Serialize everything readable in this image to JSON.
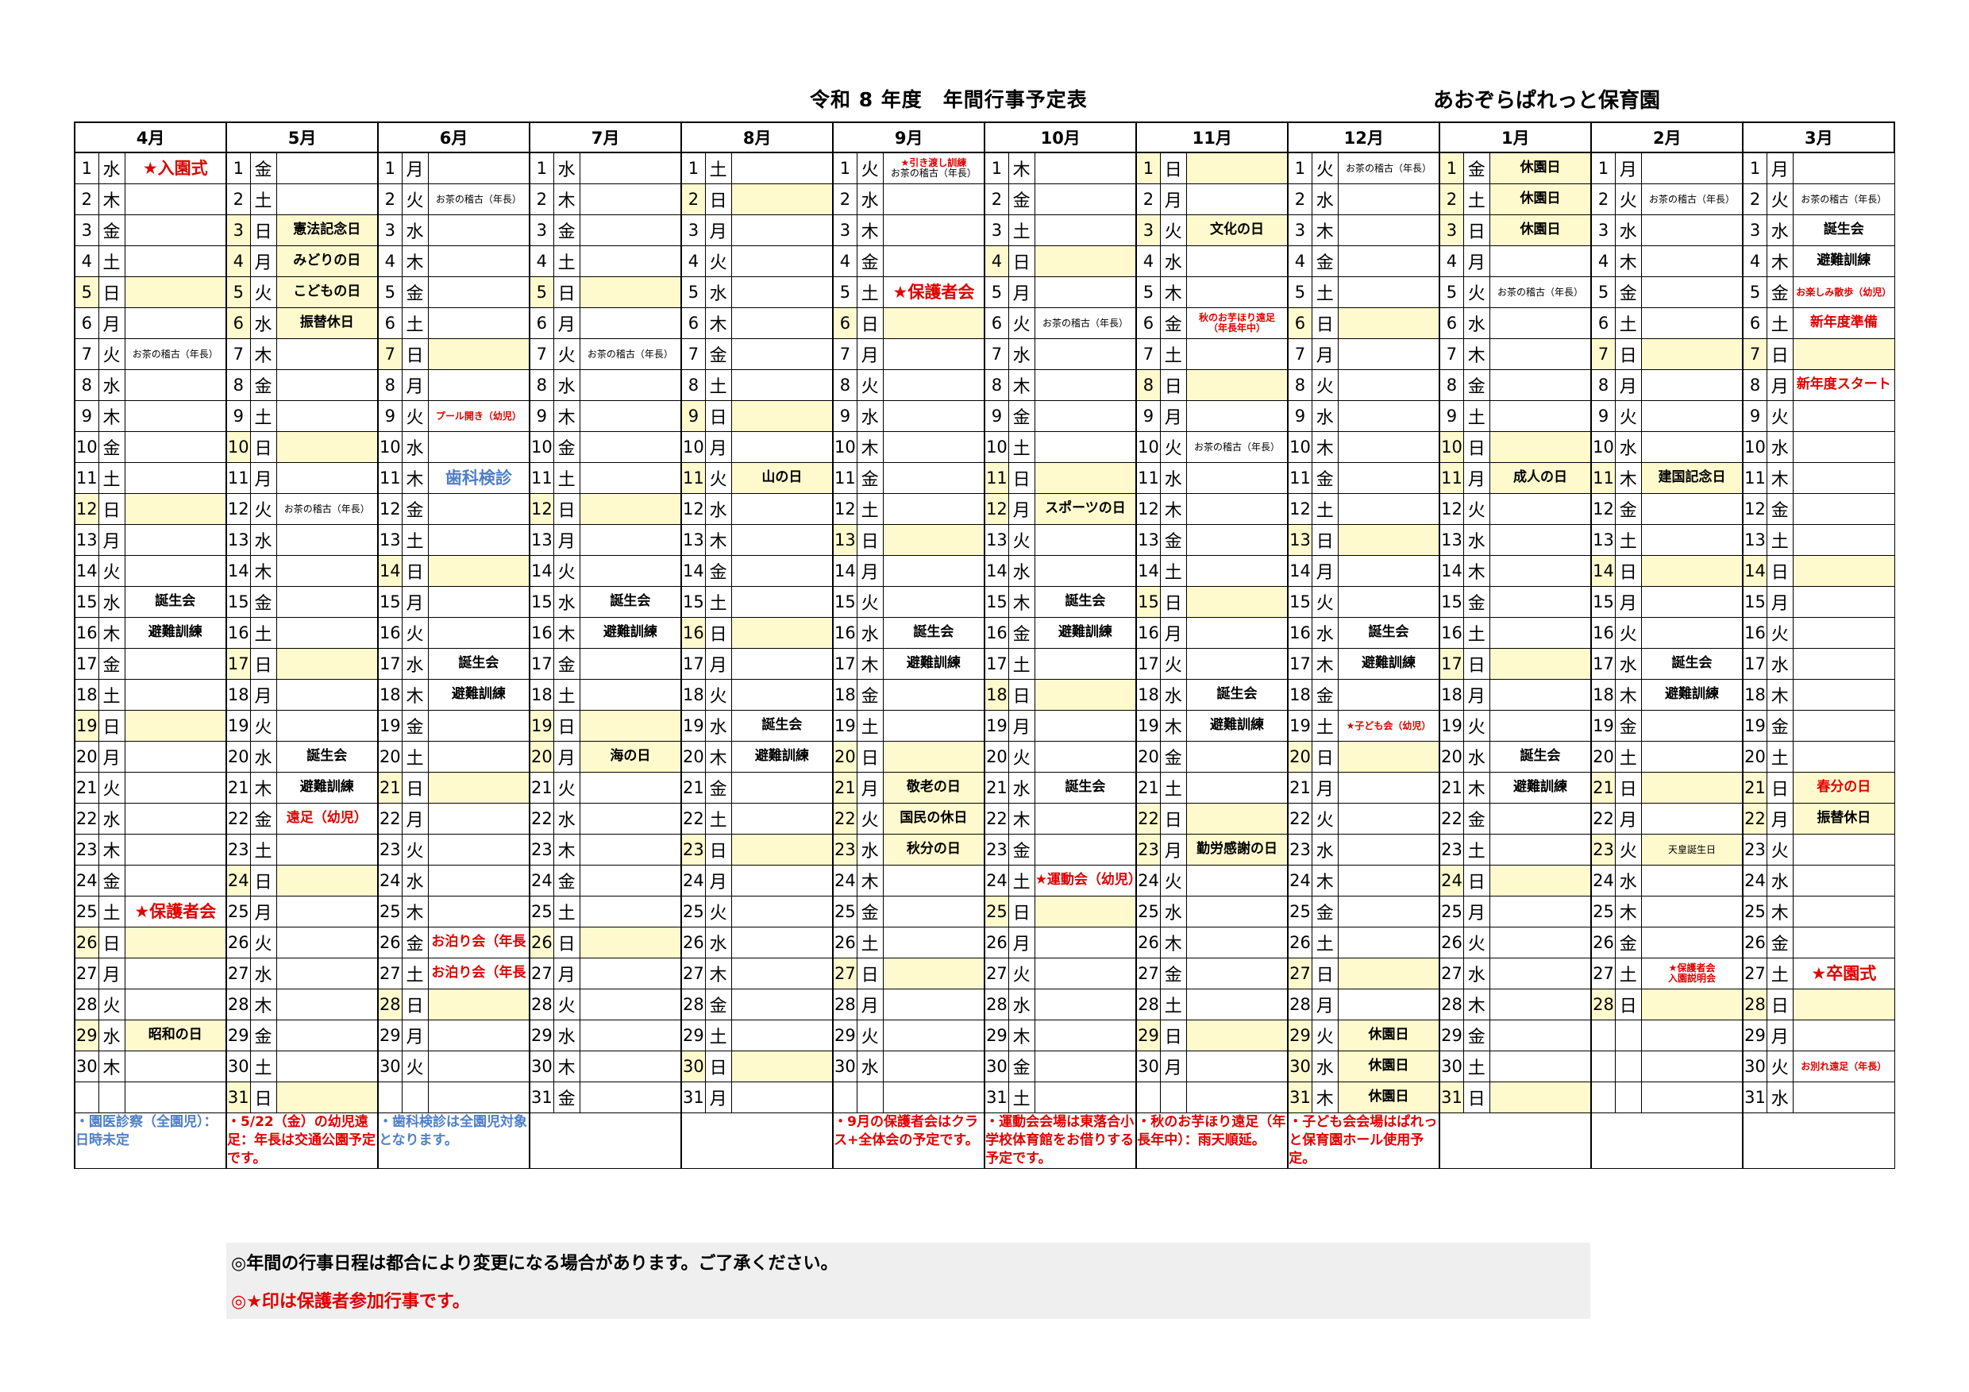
{
  "header": {
    "title": "令和 8 年度　年間行事予定表",
    "organization": "あおぞらぱれっと保育園"
  },
  "colors": {
    "red": "#e00000",
    "blue": "#4f7fc8",
    "black": "#000000",
    "holiday_fill": "#fffacd",
    "footer_fill": "#efefef"
  },
  "months": [
    {
      "label": "4月",
      "weekdays": [
        "水",
        "木",
        "金",
        "土",
        "日",
        "月",
        "火",
        "水",
        "木",
        "金",
        "土",
        "日",
        "月",
        "火",
        "水",
        "木",
        "金",
        "土",
        "日",
        "月",
        "火",
        "水",
        "木",
        "金",
        "土",
        "日",
        "月",
        "火",
        "水",
        "木"
      ],
      "highlight": [
        5,
        12,
        19,
        26,
        29
      ],
      "events": [
        {
          "day": 1,
          "text": "★入園式",
          "color": "red"
        },
        {
          "day": 7,
          "text": "お茶の稽古（年長）",
          "color": "black"
        },
        {
          "day": 15,
          "text": "誕生会",
          "color": "black"
        },
        {
          "day": 16,
          "text": "避難訓練",
          "color": "black"
        },
        {
          "day": 25,
          "text": "★保護者会",
          "color": "red"
        },
        {
          "day": 29,
          "text": "昭和の日",
          "color": "black"
        }
      ],
      "note": {
        "text": "・園医診察（全園児）：日時未定",
        "color": "blue"
      }
    },
    {
      "label": "5月",
      "weekdays": [
        "金",
        "土",
        "日",
        "月",
        "火",
        "水",
        "木",
        "金",
        "土",
        "日",
        "月",
        "火",
        "水",
        "木",
        "金",
        "土",
        "日",
        "月",
        "火",
        "水",
        "木",
        "金",
        "土",
        "日",
        "月",
        "火",
        "水",
        "木",
        "金",
        "土",
        "日"
      ],
      "highlight": [
        3,
        4,
        5,
        6,
        10,
        17,
        24,
        31
      ],
      "events": [
        {
          "day": 3,
          "text": "憲法記念日",
          "color": "black"
        },
        {
          "day": 4,
          "text": "みどりの日",
          "color": "black"
        },
        {
          "day": 5,
          "text": "こどもの日",
          "color": "black"
        },
        {
          "day": 6,
          "text": "振替休日",
          "color": "black"
        },
        {
          "day": 12,
          "text": "お茶の稽古（年長）",
          "color": "black"
        },
        {
          "day": 20,
          "text": "誕生会",
          "color": "black"
        },
        {
          "day": 21,
          "text": "避難訓練",
          "color": "black"
        },
        {
          "day": 22,
          "text": "遠足（幼児）",
          "color": "red"
        }
      ],
      "note": {
        "text": "・5/22（金）の幼児遠足：年長は交通公園予定です。",
        "color": "red"
      }
    },
    {
      "label": "6月",
      "weekdays": [
        "月",
        "火",
        "水",
        "木",
        "金",
        "土",
        "日",
        "月",
        "火",
        "水",
        "木",
        "金",
        "土",
        "日",
        "月",
        "火",
        "水",
        "木",
        "金",
        "土",
        "日",
        "月",
        "火",
        "水",
        "木",
        "金",
        "土",
        "日",
        "月",
        "火"
      ],
      "highlight": [
        7,
        14,
        21,
        28
      ],
      "events": [
        {
          "day": 2,
          "text": "お茶の稽古（年長）",
          "color": "black"
        },
        {
          "day": 9,
          "text": "プール開き（幼児）",
          "color": "red"
        },
        {
          "day": 11,
          "text": "歯科検診",
          "color": "blue"
        },
        {
          "day": 17,
          "text": "誕生会",
          "color": "black"
        },
        {
          "day": 18,
          "text": "避難訓練",
          "color": "black"
        },
        {
          "day": 26,
          "text": "お泊り会（年長",
          "color": "red"
        },
        {
          "day": 27,
          "text": "お泊り会（年長",
          "color": "red"
        }
      ],
      "note": {
        "text": "・歯科検診は全園児対象となります。",
        "color": "blue"
      }
    },
    {
      "label": "7月",
      "weekdays": [
        "水",
        "木",
        "金",
        "土",
        "日",
        "月",
        "火",
        "水",
        "木",
        "金",
        "土",
        "日",
        "月",
        "火",
        "水",
        "木",
        "金",
        "土",
        "日",
        "月",
        "火",
        "水",
        "木",
        "金",
        "土",
        "日",
        "月",
        "火",
        "水",
        "木",
        "金"
      ],
      "highlight": [
        5,
        12,
        19,
        20,
        26
      ],
      "events": [
        {
          "day": 7,
          "text": "お茶の稽古（年長）",
          "color": "black"
        },
        {
          "day": 15,
          "text": "誕生会",
          "color": "black"
        },
        {
          "day": 16,
          "text": "避難訓練",
          "color": "black"
        },
        {
          "day": 20,
          "text": "海の日",
          "color": "black"
        }
      ],
      "note": {
        "text": "",
        "color": "black"
      }
    },
    {
      "label": "8月",
      "weekdays": [
        "土",
        "日",
        "月",
        "火",
        "水",
        "木",
        "金",
        "土",
        "日",
        "月",
        "火",
        "水",
        "木",
        "金",
        "土",
        "日",
        "月",
        "火",
        "水",
        "木",
        "金",
        "土",
        "日",
        "月",
        "火",
        "水",
        "木",
        "金",
        "土",
        "日",
        "月"
      ],
      "highlight": [
        2,
        9,
        11,
        16,
        23,
        30
      ],
      "events": [
        {
          "day": 11,
          "text": "山の日",
          "color": "black"
        },
        {
          "day": 19,
          "text": "誕生会",
          "color": "black"
        },
        {
          "day": 20,
          "text": "避難訓練",
          "color": "black"
        }
      ],
      "note": {
        "text": "",
        "color": "black"
      }
    },
    {
      "label": "9月",
      "weekdays": [
        "火",
        "水",
        "木",
        "金",
        "土",
        "日",
        "月",
        "火",
        "水",
        "木",
        "金",
        "土",
        "日",
        "月",
        "火",
        "水",
        "木",
        "金",
        "土",
        "日",
        "月",
        "火",
        "水",
        "木",
        "金",
        "土",
        "日",
        "月",
        "火",
        "水"
      ],
      "highlight": [
        6,
        13,
        20,
        21,
        22,
        23,
        27
      ],
      "events": [
        {
          "day": 1,
          "text": "★引き渡し訓練",
          "color": "red",
          "sub": "お茶の稽古（年長）"
        },
        {
          "day": 5,
          "text": "★保護者会",
          "color": "red"
        },
        {
          "day": 16,
          "text": "誕生会",
          "color": "black"
        },
        {
          "day": 17,
          "text": "避難訓練",
          "color": "black"
        },
        {
          "day": 21,
          "text": "敬老の日",
          "color": "black"
        },
        {
          "day": 22,
          "text": "国民の休日",
          "color": "black"
        },
        {
          "day": 23,
          "text": "秋分の日",
          "color": "black"
        }
      ],
      "note": {
        "text": "・9月の保護者会はクラス+全体会の予定です。",
        "color": "red"
      }
    },
    {
      "label": "10月",
      "weekdays": [
        "木",
        "金",
        "土",
        "日",
        "月",
        "火",
        "水",
        "木",
        "金",
        "土",
        "日",
        "月",
        "火",
        "水",
        "木",
        "金",
        "土",
        "日",
        "月",
        "火",
        "水",
        "木",
        "金",
        "土",
        "日",
        "月",
        "火",
        "水",
        "木",
        "金",
        "土"
      ],
      "highlight": [
        4,
        11,
        12,
        18,
        25
      ],
      "events": [
        {
          "day": 6,
          "text": "お茶の稽古（年長）",
          "color": "black"
        },
        {
          "day": 12,
          "text": "スポーツの日",
          "color": "black"
        },
        {
          "day": 15,
          "text": "誕生会",
          "color": "black"
        },
        {
          "day": 16,
          "text": "避難訓練",
          "color": "black"
        },
        {
          "day": 21,
          "text": "誕生会",
          "color": "black"
        },
        {
          "day": 24,
          "text": "★運動会（幼児）",
          "color": "red"
        }
      ],
      "note": {
        "text": "・運動会会場は東落合小学校体育館をお借りする予定です。",
        "color": "red"
      }
    },
    {
      "label": "11月",
      "weekdays": [
        "日",
        "月",
        "火",
        "水",
        "木",
        "金",
        "土",
        "日",
        "月",
        "火",
        "水",
        "木",
        "金",
        "土",
        "日",
        "月",
        "火",
        "水",
        "木",
        "金",
        "土",
        "日",
        "月",
        "火",
        "水",
        "木",
        "金",
        "土",
        "日",
        "月"
      ],
      "highlight": [
        1,
        3,
        8,
        15,
        22,
        23,
        29
      ],
      "events": [
        {
          "day": 3,
          "text": "文化の日",
          "color": "black"
        },
        {
          "day": 6,
          "text": "秋のお芋ほり遠足\n（年長年中）",
          "color": "red"
        },
        {
          "day": 10,
          "text": "お茶の稽古（年長）",
          "color": "black"
        },
        {
          "day": 18,
          "text": "誕生会",
          "color": "black"
        },
        {
          "day": 19,
          "text": "避難訓練",
          "color": "black"
        },
        {
          "day": 23,
          "text": "勤労感謝の日",
          "color": "black"
        }
      ],
      "note": {
        "text": "・秋のお芋ほり遠足（年長年中）：雨天順延。",
        "color": "red"
      }
    },
    {
      "label": "12月",
      "weekdays": [
        "火",
        "水",
        "木",
        "金",
        "土",
        "日",
        "月",
        "火",
        "水",
        "木",
        "金",
        "土",
        "日",
        "月",
        "火",
        "水",
        "木",
        "金",
        "土",
        "日",
        "月",
        "火",
        "水",
        "木",
        "金",
        "土",
        "日",
        "月",
        "火",
        "水",
        "木"
      ],
      "highlight": [
        6,
        13,
        20,
        27,
        29,
        30,
        31
      ],
      "events": [
        {
          "day": 1,
          "text": "お茶の稽古（年長）",
          "color": "black"
        },
        {
          "day": 16,
          "text": "誕生会",
          "color": "black"
        },
        {
          "day": 17,
          "text": "避難訓練",
          "color": "black"
        },
        {
          "day": 19,
          "text": "★子ども会（幼児）",
          "color": "red"
        },
        {
          "day": 29,
          "text": "休園日",
          "color": "black"
        },
        {
          "day": 30,
          "text": "休園日",
          "color": "black"
        },
        {
          "day": 31,
          "text": "休園日",
          "color": "black"
        }
      ],
      "note": {
        "text": "・子ども会会場はぱれっと保育園ホール使用予定。",
        "color": "red"
      }
    },
    {
      "label": "1月",
      "weekdays": [
        "金",
        "土",
        "日",
        "月",
        "火",
        "水",
        "木",
        "金",
        "土",
        "日",
        "月",
        "火",
        "水",
        "木",
        "金",
        "土",
        "日",
        "月",
        "火",
        "水",
        "木",
        "金",
        "土",
        "日",
        "月",
        "火",
        "水",
        "木",
        "金",
        "土",
        "日"
      ],
      "highlight": [
        1,
        2,
        3,
        10,
        11,
        17,
        24,
        31
      ],
      "events": [
        {
          "day": 1,
          "text": "休園日",
          "color": "black"
        },
        {
          "day": 2,
          "text": "休園日",
          "color": "black"
        },
        {
          "day": 3,
          "text": "休園日",
          "color": "black"
        },
        {
          "day": 5,
          "text": "お茶の稽古（年長）",
          "color": "black"
        },
        {
          "day": 11,
          "text": "成人の日",
          "color": "black"
        },
        {
          "day": 20,
          "text": "誕生会",
          "color": "black"
        },
        {
          "day": 21,
          "text": "避難訓練",
          "color": "black"
        }
      ],
      "note": {
        "text": "",
        "color": "black"
      }
    },
    {
      "label": "2月",
      "weekdays": [
        "月",
        "火",
        "水",
        "木",
        "金",
        "土",
        "日",
        "月",
        "火",
        "水",
        "木",
        "金",
        "土",
        "日",
        "月",
        "火",
        "水",
        "木",
        "金",
        "土",
        "日",
        "月",
        "火",
        "水",
        "木",
        "金",
        "土",
        "日"
      ],
      "highlight": [
        7,
        11,
        14,
        21,
        23,
        28
      ],
      "events": [
        {
          "day": 2,
          "text": "お茶の稽古（年長）",
          "color": "black"
        },
        {
          "day": 11,
          "text": "建国記念日",
          "color": "black"
        },
        {
          "day": 17,
          "text": "誕生会",
          "color": "black"
        },
        {
          "day": 18,
          "text": "避難訓練",
          "color": "black"
        },
        {
          "day": 23,
          "text": "天皇誕生日",
          "color": "black"
        },
        {
          "day": 27,
          "text": "★保護者会\n入園説明会",
          "color": "red"
        }
      ],
      "note": {
        "text": "",
        "color": "black"
      }
    },
    {
      "label": "3月",
      "weekdays": [
        "月",
        "火",
        "水",
        "木",
        "金",
        "土",
        "日",
        "月",
        "火",
        "水",
        "木",
        "金",
        "土",
        "日",
        "月",
        "火",
        "水",
        "木",
        "金",
        "土",
        "日",
        "月",
        "火",
        "水",
        "木",
        "金",
        "土",
        "日",
        "月",
        "火",
        "水"
      ],
      "highlight": [
        7,
        14,
        21,
        22,
        28
      ],
      "events": [
        {
          "day": 2,
          "text": "お茶の稽古（年長）",
          "color": "black"
        },
        {
          "day": 3,
          "text": "誕生会",
          "color": "black"
        },
        {
          "day": 4,
          "text": "避難訓練",
          "color": "black"
        },
        {
          "day": 5,
          "text": "お楽しみ散歩（幼児）",
          "color": "red"
        },
        {
          "day": 6,
          "text": "新年度準備",
          "color": "red"
        },
        {
          "day": 8,
          "text": "新年度スタート",
          "color": "red"
        },
        {
          "day": 21,
          "text": "春分の日",
          "color": "red"
        },
        {
          "day": 22,
          "text": "振替休日",
          "color": "black"
        },
        {
          "day": 27,
          "text": "★卒園式",
          "color": "red"
        },
        {
          "day": 30,
          "text": "お別れ遠足（年長）",
          "color": "red"
        }
      ],
      "note": {
        "text": "",
        "color": "black"
      }
    }
  ],
  "footer": {
    "line1": "◎年間の行事日程は都合により変更になる場合があります。ご了承ください。",
    "line2": "◎★印は保護者参加行事です。"
  }
}
